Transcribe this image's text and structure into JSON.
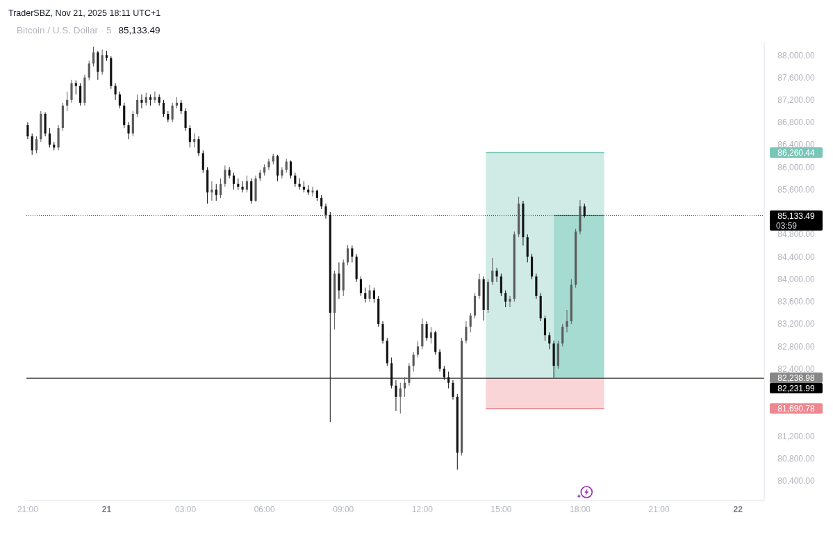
{
  "chart_data": {
    "type": "candlestick",
    "title": "Bitcoin / U.S. Dollar · 5",
    "subtitle": "85,133.49",
    "annotations": [
      "TraderSBZ, Nov 21, 2025 18:11 UTC+1",
      "03:59"
    ],
    "x": [
      "2025-11-20T21:00",
      "2025-11-20T21:10",
      "2025-11-20T21:20",
      "2025-11-20T21:30",
      "2025-11-20T21:40",
      "2025-11-20T21:50",
      "2025-11-20T22:00",
      "2025-11-20T22:10",
      "2025-11-20T22:20",
      "2025-11-20T22:30",
      "2025-11-20T22:40",
      "2025-11-20T22:50",
      "2025-11-20T23:00",
      "2025-11-20T23:10",
      "2025-11-20T23:20",
      "2025-11-20T23:30",
      "2025-11-20T23:40",
      "2025-11-20T23:50",
      "2025-11-21T00:00",
      "2025-11-21T00:10",
      "2025-11-21T00:20",
      "2025-11-21T00:30",
      "2025-11-21T00:40",
      "2025-11-21T00:50",
      "2025-11-21T01:00",
      "2025-11-21T01:10",
      "2025-11-21T01:20",
      "2025-11-21T01:30",
      "2025-11-21T01:40",
      "2025-11-21T01:50",
      "2025-11-21T02:00",
      "2025-11-21T02:10",
      "2025-11-21T02:20",
      "2025-11-21T02:30",
      "2025-11-21T02:40",
      "2025-11-21T02:50",
      "2025-11-21T03:00",
      "2025-11-21T03:10",
      "2025-11-21T03:20",
      "2025-11-21T03:30",
      "2025-11-21T03:40",
      "2025-11-21T03:50",
      "2025-11-21T04:00",
      "2025-11-21T04:10",
      "2025-11-21T04:20",
      "2025-11-21T04:30",
      "2025-11-21T04:40",
      "2025-11-21T04:50",
      "2025-11-21T05:00",
      "2025-11-21T05:10",
      "2025-11-21T05:20",
      "2025-11-21T05:30",
      "2025-11-21T05:40",
      "2025-11-21T05:50",
      "2025-11-21T06:00",
      "2025-11-21T06:10",
      "2025-11-21T06:20",
      "2025-11-21T06:30",
      "2025-11-21T06:40",
      "2025-11-21T06:50",
      "2025-11-21T07:00",
      "2025-11-21T07:10",
      "2025-11-21T07:20",
      "2025-11-21T07:30",
      "2025-11-21T07:40",
      "2025-11-21T07:50",
      "2025-11-21T08:00",
      "2025-11-21T08:10",
      "2025-11-21T08:20",
      "2025-11-21T08:30",
      "2025-11-21T08:40",
      "2025-11-21T08:50",
      "2025-11-21T09:00",
      "2025-11-21T09:10",
      "2025-11-21T09:20",
      "2025-11-21T09:30",
      "2025-11-21T09:40",
      "2025-11-21T09:50",
      "2025-11-21T10:00",
      "2025-11-21T10:10",
      "2025-11-21T10:20",
      "2025-11-21T10:30",
      "2025-11-21T10:40",
      "2025-11-21T10:50",
      "2025-11-21T11:00",
      "2025-11-21T11:10",
      "2025-11-21T11:20",
      "2025-11-21T11:30",
      "2025-11-21T11:40",
      "2025-11-21T11:50",
      "2025-11-21T12:00",
      "2025-11-21T12:10",
      "2025-11-21T12:20",
      "2025-11-21T12:30",
      "2025-11-21T12:40",
      "2025-11-21T12:50",
      "2025-11-21T13:00",
      "2025-11-21T13:10",
      "2025-11-21T13:20",
      "2025-11-21T13:30",
      "2025-11-21T13:40",
      "2025-11-21T13:50",
      "2025-11-21T14:00",
      "2025-11-21T14:10",
      "2025-11-21T14:20",
      "2025-11-21T14:30",
      "2025-11-21T14:40",
      "2025-11-21T14:50",
      "2025-11-21T15:00",
      "2025-11-21T15:10",
      "2025-11-21T15:20",
      "2025-11-21T15:30",
      "2025-11-21T15:40",
      "2025-11-21T15:50",
      "2025-11-21T16:00",
      "2025-11-21T16:10",
      "2025-11-21T16:20",
      "2025-11-21T16:30",
      "2025-11-21T16:40",
      "2025-11-21T16:50",
      "2025-11-21T17:00",
      "2025-11-21T17:10",
      "2025-11-21T17:20",
      "2025-11-21T17:30",
      "2025-11-21T17:40",
      "2025-11-21T17:50",
      "2025-11-21T18:00",
      "2025-11-21T18:10"
    ],
    "ohlc": [
      [
        86750,
        86800,
        86500,
        86550
      ],
      [
        86550,
        86600,
        86220,
        86300
      ],
      [
        86300,
        86550,
        86250,
        86500
      ],
      [
        86500,
        87000,
        86450,
        86950
      ],
      [
        86950,
        86980,
        86550,
        86600
      ],
      [
        86600,
        86700,
        86350,
        86400
      ],
      [
        86400,
        86450,
        86300,
        86350
      ],
      [
        86350,
        86750,
        86300,
        86700
      ],
      [
        86700,
        87150,
        86650,
        87100
      ],
      [
        87100,
        87350,
        87000,
        87200
      ],
      [
        87200,
        87560,
        87150,
        87500
      ],
      [
        87500,
        87550,
        87300,
        87450
      ],
      [
        87450,
        87500,
        87100,
        87150
      ],
      [
        87150,
        87650,
        87100,
        87600
      ],
      [
        87600,
        87900,
        87550,
        87850
      ],
      [
        87850,
        88150,
        87800,
        88050
      ],
      [
        88050,
        88080,
        87560,
        87700
      ],
      [
        87700,
        88100,
        87650,
        88000
      ],
      [
        88000,
        88080,
        87900,
        87950
      ],
      [
        87950,
        87980,
        87400,
        87450
      ],
      [
        87450,
        87500,
        87200,
        87300
      ],
      [
        87300,
        87350,
        87050,
        87100
      ],
      [
        87100,
        87150,
        86700,
        86750
      ],
      [
        86750,
        86800,
        86500,
        86600
      ],
      [
        86600,
        87000,
        86550,
        86950
      ],
      [
        86950,
        87300,
        86900,
        87200
      ],
      [
        87200,
        87300,
        87050,
        87150
      ],
      [
        87150,
        87330,
        87100,
        87250
      ],
      [
        87250,
        87300,
        87100,
        87200
      ],
      [
        87200,
        87350,
        87150,
        87250
      ],
      [
        87250,
        87300,
        87100,
        87150
      ],
      [
        87150,
        87200,
        86900,
        86950
      ],
      [
        86950,
        87000,
        86800,
        86850
      ],
      [
        86850,
        87150,
        86800,
        87100
      ],
      [
        87100,
        87250,
        87050,
        87150
      ],
      [
        87150,
        87200,
        86950,
        87000
      ],
      [
        87000,
        87050,
        86650,
        86700
      ],
      [
        86700,
        86750,
        86350,
        86450
      ],
      [
        86450,
        86600,
        86350,
        86500
      ],
      [
        86500,
        86550,
        86200,
        86250
      ],
      [
        86250,
        86300,
        85900,
        85950
      ],
      [
        85950,
        86000,
        85350,
        85550
      ],
      [
        85550,
        85750,
        85400,
        85600
      ],
      [
        85600,
        85700,
        85400,
        85500
      ],
      [
        85500,
        85800,
        85450,
        85700
      ],
      [
        85700,
        86030,
        85650,
        85950
      ],
      [
        85950,
        86000,
        85800,
        85850
      ],
      [
        85850,
        85900,
        85600,
        85700
      ],
      [
        85700,
        85800,
        85600,
        85650
      ],
      [
        85650,
        85750,
        85550,
        85600
      ],
      [
        85600,
        85850,
        85550,
        85750
      ],
      [
        85750,
        85800,
        85350,
        85400
      ],
      [
        85400,
        85850,
        85380,
        85800
      ],
      [
        85800,
        85950,
        85750,
        85900
      ],
      [
        85900,
        86050,
        85850,
        86000
      ],
      [
        86000,
        86150,
        85950,
        86100
      ],
      [
        86100,
        86240,
        86050,
        86200
      ],
      [
        86200,
        86220,
        85750,
        85850
      ],
      [
        85850,
        86000,
        85800,
        85950
      ],
      [
        85950,
        86150,
        85900,
        86100
      ],
      [
        86100,
        86120,
        85800,
        85850
      ],
      [
        85850,
        85900,
        85650,
        85700
      ],
      [
        85700,
        85800,
        85600,
        85650
      ],
      [
        85650,
        85750,
        85550,
        85600
      ],
      [
        85600,
        85680,
        85500,
        85550
      ],
      [
        85550,
        85650,
        85480,
        85580
      ],
      [
        85580,
        85600,
        85400,
        85450
      ],
      [
        85450,
        85500,
        85250,
        85300
      ],
      [
        85300,
        85350,
        85080,
        85150
      ],
      [
        85150,
        85200,
        81450,
        83400
      ],
      [
        83400,
        84150,
        83100,
        84100
      ],
      [
        84100,
        84300,
        83650,
        83800
      ],
      [
        83800,
        84350,
        83700,
        84300
      ],
      [
        84300,
        84610,
        84250,
        84550
      ],
      [
        84550,
        84600,
        84300,
        84400
      ],
      [
        84400,
        84450,
        83950,
        84000
      ],
      [
        84000,
        84050,
        83700,
        83750
      ],
      [
        83750,
        83850,
        83580,
        83650
      ],
      [
        83650,
        83900,
        83600,
        83800
      ],
      [
        83800,
        83850,
        83580,
        83650
      ],
      [
        83650,
        83700,
        83150,
        83200
      ],
      [
        83200,
        83250,
        82850,
        82900
      ],
      [
        82900,
        82950,
        82450,
        82500
      ],
      [
        82500,
        82600,
        82050,
        82100
      ],
      [
        82100,
        82200,
        81650,
        81900
      ],
      [
        81900,
        82150,
        81600,
        82050
      ],
      [
        82050,
        82250,
        81900,
        82150
      ],
      [
        82150,
        82500,
        82100,
        82450
      ],
      [
        82450,
        82700,
        82350,
        82650
      ],
      [
        82650,
        82900,
        82600,
        82800
      ],
      [
        82800,
        83300,
        82750,
        83200
      ],
      [
        83200,
        83250,
        82900,
        82950
      ],
      [
        82950,
        83150,
        82850,
        83050
      ],
      [
        83050,
        83080,
        82650,
        82700
      ],
      [
        82700,
        82750,
        82350,
        82400
      ],
      [
        82400,
        82450,
        82200,
        82250
      ],
      [
        82250,
        82350,
        82050,
        82150
      ],
      [
        82150,
        82200,
        81850,
        81900
      ],
      [
        81900,
        81950,
        80600,
        80900
      ],
      [
        80900,
        82950,
        80850,
        82900
      ],
      [
        82900,
        83250,
        82850,
        83150
      ],
      [
        83150,
        83400,
        83050,
        83350
      ],
      [
        83350,
        83750,
        83300,
        83700
      ],
      [
        83700,
        84100,
        83650,
        84000
      ],
      [
        84000,
        84050,
        83260,
        83450
      ],
      [
        83450,
        84000,
        83400,
        83950
      ],
      [
        83950,
        84380,
        83900,
        84150
      ],
      [
        84150,
        84200,
        83950,
        84050
      ],
      [
        84050,
        84100,
        83700,
        83750
      ],
      [
        83750,
        83800,
        83500,
        83600
      ],
      [
        83600,
        83700,
        83500,
        83650
      ],
      [
        83650,
        84850,
        83600,
        84800
      ],
      [
        84800,
        85470,
        84750,
        85350
      ],
      [
        85350,
        85400,
        84600,
        84750
      ],
      [
        84750,
        84800,
        84300,
        84400
      ],
      [
        84400,
        84450,
        84000,
        84050
      ],
      [
        84050,
        84100,
        83650,
        83700
      ],
      [
        83700,
        83750,
        83250,
        83300
      ],
      [
        83300,
        83350,
        82900,
        83000
      ],
      [
        83000,
        83050,
        82750,
        82850
      ],
      [
        82850,
        82900,
        82240,
        82450
      ],
      [
        82450,
        82900,
        82400,
        82850
      ],
      [
        82850,
        83200,
        82800,
        83150
      ],
      [
        83150,
        83450,
        83050,
        83250
      ],
      [
        83250,
        84000,
        83200,
        83900
      ],
      [
        83900,
        84900,
        83850,
        84850
      ],
      [
        84850,
        85410,
        84800,
        85300
      ],
      [
        85300,
        85350,
        85100,
        85133.49
      ]
    ],
    "colors": [
      "#131313",
      "#131313",
      "#5a5a5a",
      "#5a5a5a",
      "#131313",
      "#131313",
      "#131313",
      "#5a5a5a",
      "#5a5a5a",
      "#5a5a5a",
      "#5a5a5a",
      "#131313",
      "#131313",
      "#5a5a5a",
      "#5a5a5a",
      "#5a5a5a",
      "#131313",
      "#5a5a5a",
      "#131313",
      "#131313",
      "#131313",
      "#131313",
      "#131313",
      "#131313",
      "#5a5a5a",
      "#5a5a5a",
      "#131313",
      "#5a5a5a",
      "#131313",
      "#5a5a5a",
      "#131313",
      "#131313",
      "#131313",
      "#5a5a5a",
      "#5a5a5a",
      "#131313",
      "#131313",
      "#131313",
      "#5a5a5a",
      "#131313",
      "#131313",
      "#131313",
      "#5a5a5a",
      "#131313",
      "#5a5a5a",
      "#5a5a5a",
      "#131313",
      "#131313",
      "#131313",
      "#131313",
      "#5a5a5a",
      "#131313",
      "#5a5a5a",
      "#5a5a5a",
      "#5a5a5a",
      "#5a5a5a",
      "#5a5a5a",
      "#131313",
      "#5a5a5a",
      "#5a5a5a",
      "#131313",
      "#131313",
      "#131313",
      "#131313",
      "#131313",
      "#5a5a5a",
      "#131313",
      "#131313",
      "#131313",
      "#131313",
      "#5a5a5a",
      "#131313",
      "#5a5a5a",
      "#5a5a5a",
      "#131313",
      "#131313",
      "#131313",
      "#131313",
      "#5a5a5a",
      "#131313",
      "#131313",
      "#131313",
      "#131313",
      "#131313",
      "#131313",
      "#5a5a5a",
      "#5a5a5a",
      "#5a5a5a",
      "#5a5a5a",
      "#5a5a5a",
      "#5a5a5a",
      "#131313",
      "#5a5a5a",
      "#131313",
      "#131313",
      "#131313",
      "#131313",
      "#131313",
      "#131313",
      "#5a5a5a",
      "#5a5a5a",
      "#5a5a5a",
      "#5a5a5a",
      "#5a5a5a",
      "#131313",
      "#5a5a5a",
      "#5a5a5a",
      "#131313",
      "#131313",
      "#131313",
      "#5a5a5a",
      "#5a5a5a",
      "#5a5a5a",
      "#131313",
      "#131313",
      "#131313",
      "#131313",
      "#131313",
      "#131313",
      "#131313",
      "#131313",
      "#5a5a5a",
      "#5a5a5a",
      "#5a5a5a",
      "#5a5a5a",
      "#5a5a5a",
      "#5a5a5a",
      "#131313"
    ],
    "series": [
      {
        "type": "line",
        "x": [
          "2025-11-21T14:25",
          "2025-11-21T17:00",
          "2025-11-21T17:00",
          "2025-11-21T18:55"
        ],
        "values": [
          86260.44,
          86260.44,
          86260.44,
          86260.44
        ],
        "lower": [
          82238.98,
          82238.98,
          85133.49,
          85133.49
        ],
        "upper": [
          86260.44,
          86260.44,
          86260.44,
          86260.44
        ],
        "color": "#79c6b8"
      },
      {
        "type": "line",
        "x": [
          "2025-11-21T14:25",
          "2025-11-21T18:55"
        ],
        "values": [
          81690.78,
          81690.78
        ],
        "lower": [
          81690.78,
          81690.78
        ],
        "upper": [
          82238.98,
          82238.98
        ],
        "color": "#ee878f"
      },
      {
        "type": "line",
        "x": [
          "2025-11-21T17:00",
          "2025-11-21T18:55"
        ],
        "values": [
          85133.49,
          85133.49
        ],
        "lower": [
          82238.98,
          82238.98
        ],
        "upper": [
          85133.49,
          85133.49
        ],
        "color": "#01987e"
      }
    ],
    "xlim": [
      "2025-11-20T20:57",
      "2025-11-22T01:00"
    ],
    "xticks": [
      {
        "value": "2025-11-20T21:00",
        "label": "21:00"
      },
      {
        "value": "2025-11-21",
        "label": "21"
      },
      {
        "value": "2025-11-21T03:00",
        "label": "03:00"
      },
      {
        "value": "2025-11-21T06:00",
        "label": "06:00"
      },
      {
        "value": "2025-11-21T09:00",
        "label": "09:00"
      },
      {
        "value": "2025-11-21T12:00",
        "label": "12:00"
      },
      {
        "value": "2025-11-21T15:00",
        "label": "15:00"
      },
      {
        "value": "2025-11-21T18:00",
        "label": "18:00"
      },
      {
        "value": "2025-11-21T21:00",
        "label": "21:00"
      },
      {
        "value": "2025-11-22",
        "label": "22"
      }
    ],
    "ylim": [
      80050,
      88240
    ],
    "yticks": [
      {
        "value": 80400,
        "label": "80,400.00"
      },
      {
        "value": 80800,
        "label": "80,800.00"
      },
      {
        "value": 81200,
        "label": "81,200.00"
      },
      {
        "value": 81690.78,
        "label": "81,690.78"
      },
      {
        "value": 82238.98,
        "label": "82,238.98"
      },
      {
        "value": 82400,
        "label": "82,400.00"
      },
      {
        "value": 82800,
        "label": "82,800.00"
      },
      {
        "value": 83200,
        "label": "83,200.00"
      },
      {
        "value": 83600,
        "label": "83,600.00"
      },
      {
        "value": 84000,
        "label": "84,000.00"
      },
      {
        "value": 84400,
        "label": "84,400.00"
      },
      {
        "value": 84800,
        "label": "84,800.00"
      },
      {
        "value": 85600,
        "label": "85,600.00"
      },
      {
        "value": 86000,
        "label": "86,000.00"
      },
      {
        "value": 86260.44,
        "label": "86,260.44"
      },
      {
        "value": 86400,
        "label": "86,400.00"
      },
      {
        "value": 86800,
        "label": "86,800.00"
      },
      {
        "value": 87200,
        "label": "87,200.00"
      },
      {
        "value": 87600,
        "label": "87,600.00"
      },
      {
        "value": 88000,
        "label": "88,000.00"
      }
    ],
    "ref_lines": [
      {
        "axis": "y",
        "value": 85133.49,
        "label": "85,133.49",
        "color": "#000000",
        "line_style": "dotted"
      },
      {
        "axis": "y",
        "value": 82231.99,
        "label": "82,231.99",
        "color": "#000000",
        "line_style": "solid"
      }
    ]
  }
}
